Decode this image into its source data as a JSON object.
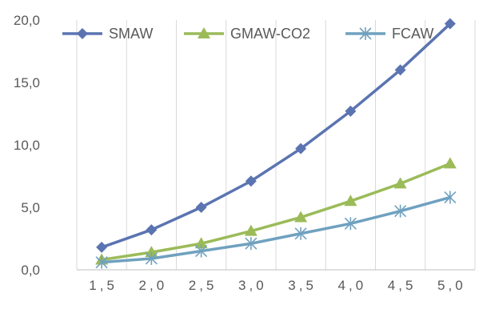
{
  "chart_data": {
    "type": "line",
    "title": "",
    "xlabel": "",
    "ylabel": "",
    "categories": [
      "1,5",
      "2,0",
      "2,5",
      "3,0",
      "3,5",
      "4,0",
      "4,5",
      "5,0"
    ],
    "ylim": [
      0,
      20
    ],
    "yticks": [
      "0,0",
      "5,0",
      "10,0",
      "15,0",
      "20,0"
    ],
    "grid": "vertical",
    "legend_position": "top",
    "series": [
      {
        "name": "SMAW",
        "color": "#5b74b1",
        "marker": "diamond",
        "values": [
          1.8,
          3.2,
          5.0,
          7.1,
          9.7,
          12.7,
          16.0,
          19.7
        ]
      },
      {
        "name": "GMAW-CO2",
        "color": "#9bbb59",
        "marker": "triangle",
        "values": [
          0.8,
          1.4,
          2.1,
          3.1,
          4.2,
          5.5,
          6.9,
          8.5
        ]
      },
      {
        "name": "FCAW",
        "color": "#6fa1bf",
        "marker": "star",
        "values": [
          0.6,
          0.9,
          1.5,
          2.1,
          2.9,
          3.7,
          4.7,
          5.8
        ]
      }
    ]
  }
}
